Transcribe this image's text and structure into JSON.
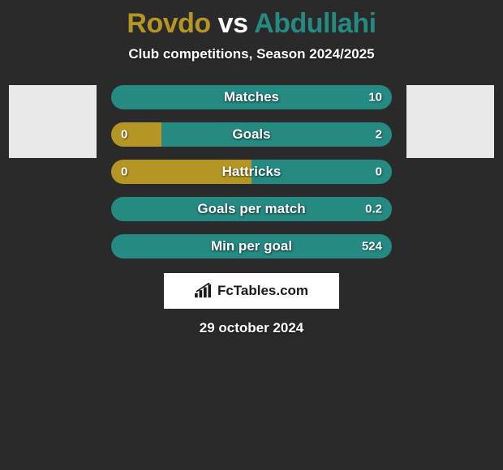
{
  "background_color": "#2a2a2a",
  "title": {
    "left": "Rovdo",
    "vs": "vs",
    "right": "Abdullahi",
    "left_color": "#b59625",
    "right_color": "#258a82",
    "vs_color": "#ffffff"
  },
  "subtitle": "Club competitions, Season 2024/2025",
  "avatar_left_color": "#e9e9e9",
  "avatar_right_color": "#e9e9e9",
  "bar_style": {
    "height": 30,
    "radius": 15,
    "label_fontsize": 17,
    "value_fontsize": 15,
    "text_color": "#ffffff"
  },
  "color_left": "#b59625",
  "color_right": "#258a82",
  "bars": [
    {
      "label": "Matches",
      "left_value": "",
      "right_value": "10",
      "left_pct": 0,
      "right_pct": 100
    },
    {
      "label": "Goals",
      "left_value": "0",
      "right_value": "2",
      "left_pct": 18,
      "right_pct": 82
    },
    {
      "label": "Hattricks",
      "left_value": "0",
      "right_value": "0",
      "left_pct": 50,
      "right_pct": 50
    },
    {
      "label": "Goals per match",
      "left_value": "",
      "right_value": "0.2",
      "left_pct": 0,
      "right_pct": 100
    },
    {
      "label": "Min per goal",
      "left_value": "",
      "right_value": "524",
      "left_pct": 0,
      "right_pct": 100
    }
  ],
  "brand": "FcTables.com",
  "date": "29 october 2024"
}
